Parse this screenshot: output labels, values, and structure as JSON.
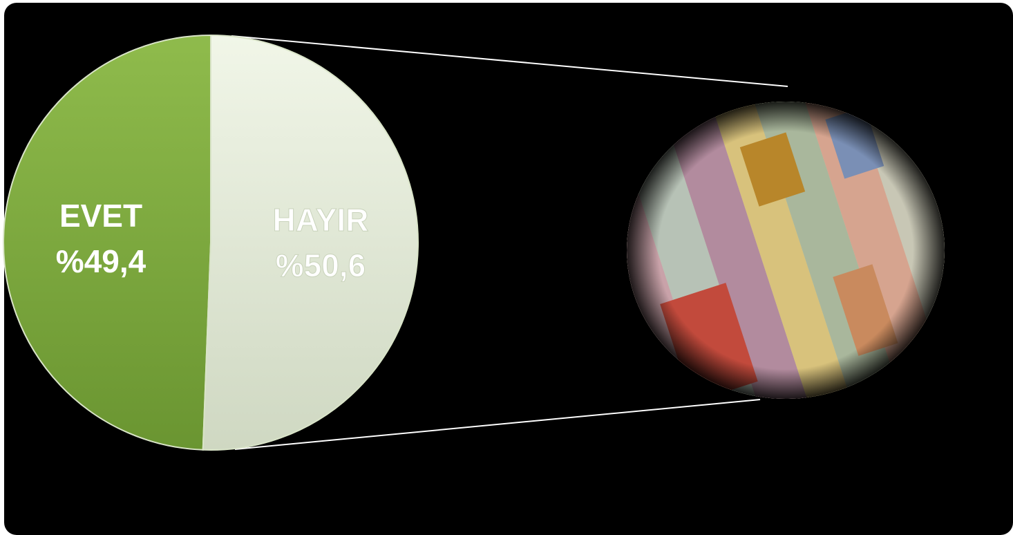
{
  "chart_data": {
    "type": "pie",
    "categories": [
      "EVET",
      "HAYIR"
    ],
    "values": [
      49.4,
      50.6
    ],
    "value_labels": [
      "%49,4",
      "%50,6"
    ],
    "colors": [
      "#7aa53c",
      "#e9f0de"
    ]
  }
}
